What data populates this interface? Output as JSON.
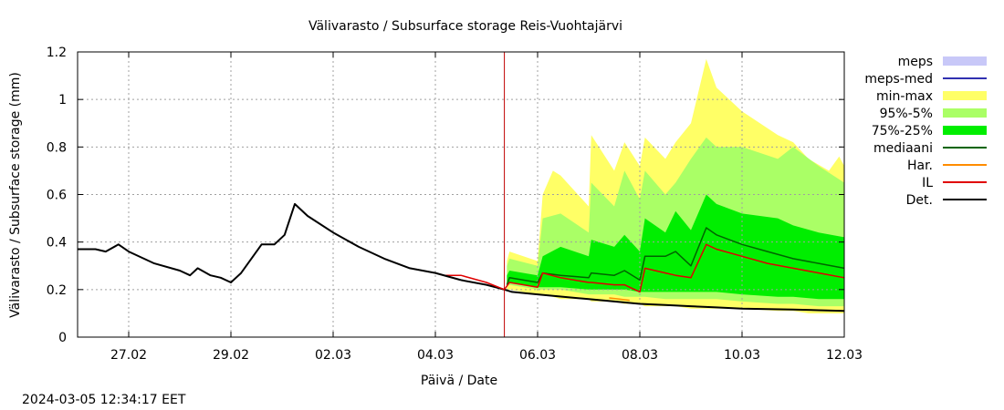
{
  "timestamp": "2024-03-05 12:34:17 EET",
  "chart_data": {
    "type": "area",
    "title": "Välivarasto / Subsurface storage  Reis-Vuohtajärvi",
    "xlabel": "Päivä / Date",
    "ylabel": "Välivarasto / Subsurface storage (mm)",
    "ylim": [
      0,
      1.2
    ],
    "xlim": [
      0,
      15
    ],
    "yticks": [
      0,
      0.2,
      0.4,
      0.6,
      0.8,
      1,
      1.2
    ],
    "ytick_labels": [
      "0",
      "0.2",
      "0.4",
      "0.6",
      "0.8",
      "1",
      "1.2"
    ],
    "xticks": [
      1,
      3,
      5,
      7,
      9,
      11,
      13,
      15
    ],
    "xtick_labels": [
      "27.02",
      "29.02",
      "02.03",
      "04.03",
      "06.03",
      "08.03",
      "10.03",
      "12.03"
    ],
    "grid": true,
    "forecast_start_x": 8.35,
    "legend_position": "right",
    "colors": {
      "meps": "#c8c8f8",
      "meps_med": "#3030b0",
      "minmax": "#ffff66",
      "p95_5": "#aaff66",
      "p75_25": "#00ee00",
      "mediaani": "#006400",
      "har": "#ff8c00",
      "il": "#e00000",
      "det": "#000000",
      "forecast_line": "#c00000",
      "grid": "#a0a0a0"
    },
    "legend": [
      {
        "key": "meps",
        "label": "meps",
        "kind": "box",
        "color": "#c8c8f8"
      },
      {
        "key": "meps_med",
        "label": "meps-med",
        "kind": "line",
        "color": "#3030b0"
      },
      {
        "key": "minmax",
        "label": "min-max",
        "kind": "box",
        "color": "#ffff66"
      },
      {
        "key": "p95_5",
        "label": "95%-5%",
        "kind": "box",
        "color": "#aaff66"
      },
      {
        "key": "p75_25",
        "label": "75%-25%",
        "kind": "box",
        "color": "#00ee00"
      },
      {
        "key": "mediaani",
        "label": "mediaani",
        "kind": "line",
        "color": "#006400"
      },
      {
        "key": "har",
        "label": "Har.",
        "kind": "line",
        "color": "#ff8c00"
      },
      {
        "key": "il",
        "label": "IL",
        "kind": "line",
        "color": "#e00000"
      },
      {
        "key": "det",
        "label": "Det.",
        "kind": "line",
        "color": "#000000"
      }
    ],
    "series": {
      "observed": {
        "name": "Det. (history)",
        "x": [
          0,
          0.35,
          0.55,
          0.8,
          1.0,
          1.5,
          2.0,
          2.2,
          2.35,
          2.6,
          2.8,
          3.0,
          3.2,
          3.6,
          3.85,
          4.05,
          4.25,
          4.5,
          5.0,
          5.5,
          6.0,
          6.5,
          7.0,
          7.5
        ],
        "y": [
          0.37,
          0.37,
          0.36,
          0.39,
          0.36,
          0.31,
          0.28,
          0.26,
          0.29,
          0.26,
          0.25,
          0.23,
          0.27,
          0.39,
          0.39,
          0.43,
          0.56,
          0.51,
          0.44,
          0.38,
          0.33,
          0.29,
          0.27,
          0.24
        ]
      },
      "minmax": {
        "x": [
          8.4,
          8.45,
          9.0,
          9.1,
          9.3,
          9.45,
          10.0,
          10.05,
          10.5,
          10.7,
          11.0,
          11.1,
          11.5,
          11.7,
          12.0,
          12.3,
          12.5,
          13.0,
          13.7,
          14.0,
          14.3,
          14.7,
          14.9,
          15.0
        ],
        "y_min": [
          0.2,
          0.2,
          0.18,
          0.18,
          0.17,
          0.16,
          0.16,
          0.15,
          0.15,
          0.14,
          0.14,
          0.13,
          0.13,
          0.13,
          0.12,
          0.12,
          0.12,
          0.12,
          0.11,
          0.11,
          0.1,
          0.1,
          0.1,
          0.1
        ],
        "y_max": [
          0.32,
          0.36,
          0.32,
          0.6,
          0.7,
          0.68,
          0.55,
          0.85,
          0.7,
          0.82,
          0.72,
          0.84,
          0.75,
          0.82,
          0.9,
          1.17,
          1.05,
          0.95,
          0.85,
          0.82,
          0.75,
          0.7,
          0.76,
          0.72
        ]
      },
      "p95_5": {
        "x": [
          8.4,
          8.45,
          9.0,
          9.1,
          9.45,
          10.0,
          10.05,
          10.5,
          10.7,
          11.0,
          11.1,
          11.5,
          11.7,
          12.0,
          12.3,
          12.5,
          13.0,
          13.7,
          14.0,
          14.5,
          15.0
        ],
        "y_lo": [
          0.22,
          0.22,
          0.2,
          0.2,
          0.2,
          0.18,
          0.18,
          0.18,
          0.17,
          0.17,
          0.17,
          0.16,
          0.16,
          0.16,
          0.16,
          0.16,
          0.15,
          0.14,
          0.14,
          0.13,
          0.13
        ],
        "y_hi": [
          0.3,
          0.33,
          0.3,
          0.5,
          0.52,
          0.44,
          0.65,
          0.55,
          0.7,
          0.58,
          0.7,
          0.6,
          0.65,
          0.75,
          0.84,
          0.8,
          0.8,
          0.75,
          0.8,
          0.72,
          0.65
        ]
      },
      "p75_25": {
        "x": [
          8.4,
          8.45,
          9.0,
          9.1,
          9.45,
          10.0,
          10.05,
          10.5,
          10.7,
          11.0,
          11.1,
          11.5,
          11.7,
          12.0,
          12.3,
          12.5,
          13.0,
          13.7,
          14.0,
          14.5,
          15.0
        ],
        "y_lo": [
          0.22,
          0.23,
          0.21,
          0.21,
          0.21,
          0.2,
          0.2,
          0.2,
          0.2,
          0.19,
          0.19,
          0.19,
          0.19,
          0.19,
          0.19,
          0.19,
          0.18,
          0.17,
          0.17,
          0.16,
          0.16
        ],
        "y_hi": [
          0.26,
          0.28,
          0.26,
          0.34,
          0.38,
          0.34,
          0.41,
          0.38,
          0.43,
          0.36,
          0.5,
          0.44,
          0.53,
          0.45,
          0.6,
          0.56,
          0.52,
          0.5,
          0.47,
          0.44,
          0.42
        ]
      },
      "mediaani": {
        "x": [
          8.4,
          8.45,
          9.0,
          9.1,
          9.45,
          10.0,
          10.05,
          10.5,
          10.7,
          11.0,
          11.1,
          11.5,
          11.7,
          12.0,
          12.3,
          12.5,
          13.0,
          13.5,
          14.0,
          14.5,
          15.0
        ],
        "y": [
          0.22,
          0.25,
          0.23,
          0.27,
          0.26,
          0.25,
          0.27,
          0.26,
          0.28,
          0.24,
          0.34,
          0.34,
          0.36,
          0.3,
          0.46,
          0.43,
          0.39,
          0.36,
          0.33,
          0.31,
          0.29
        ]
      },
      "il": {
        "x": [
          7.2,
          7.5,
          8.0,
          8.35,
          8.45,
          9.0,
          9.1,
          9.45,
          10.0,
          10.05,
          10.5,
          10.7,
          11.0,
          11.1,
          11.5,
          11.7,
          12.0,
          12.3,
          12.5,
          13.0,
          13.5,
          14.0,
          14.5,
          15.0
        ],
        "y": [
          0.26,
          0.26,
          0.23,
          0.2,
          0.23,
          0.21,
          0.27,
          0.25,
          0.23,
          0.23,
          0.22,
          0.22,
          0.19,
          0.29,
          0.27,
          0.26,
          0.25,
          0.39,
          0.37,
          0.34,
          0.31,
          0.29,
          0.27,
          0.25
        ]
      },
      "har": {
        "x": [
          10.4,
          10.6,
          10.8
        ],
        "y": [
          0.165,
          0.16,
          0.155
        ]
      },
      "det": {
        "x": [
          7.5,
          8.0,
          8.35,
          8.5,
          9.0,
          9.5,
          10.0,
          10.5,
          11.0,
          11.5,
          12.0,
          12.5,
          13.0,
          13.5,
          14.0,
          14.5,
          15.0
        ],
        "y": [
          0.24,
          0.22,
          0.2,
          0.19,
          0.18,
          0.17,
          0.16,
          0.15,
          0.14,
          0.135,
          0.13,
          0.125,
          0.12,
          0.118,
          0.116,
          0.113,
          0.11
        ]
      }
    }
  }
}
